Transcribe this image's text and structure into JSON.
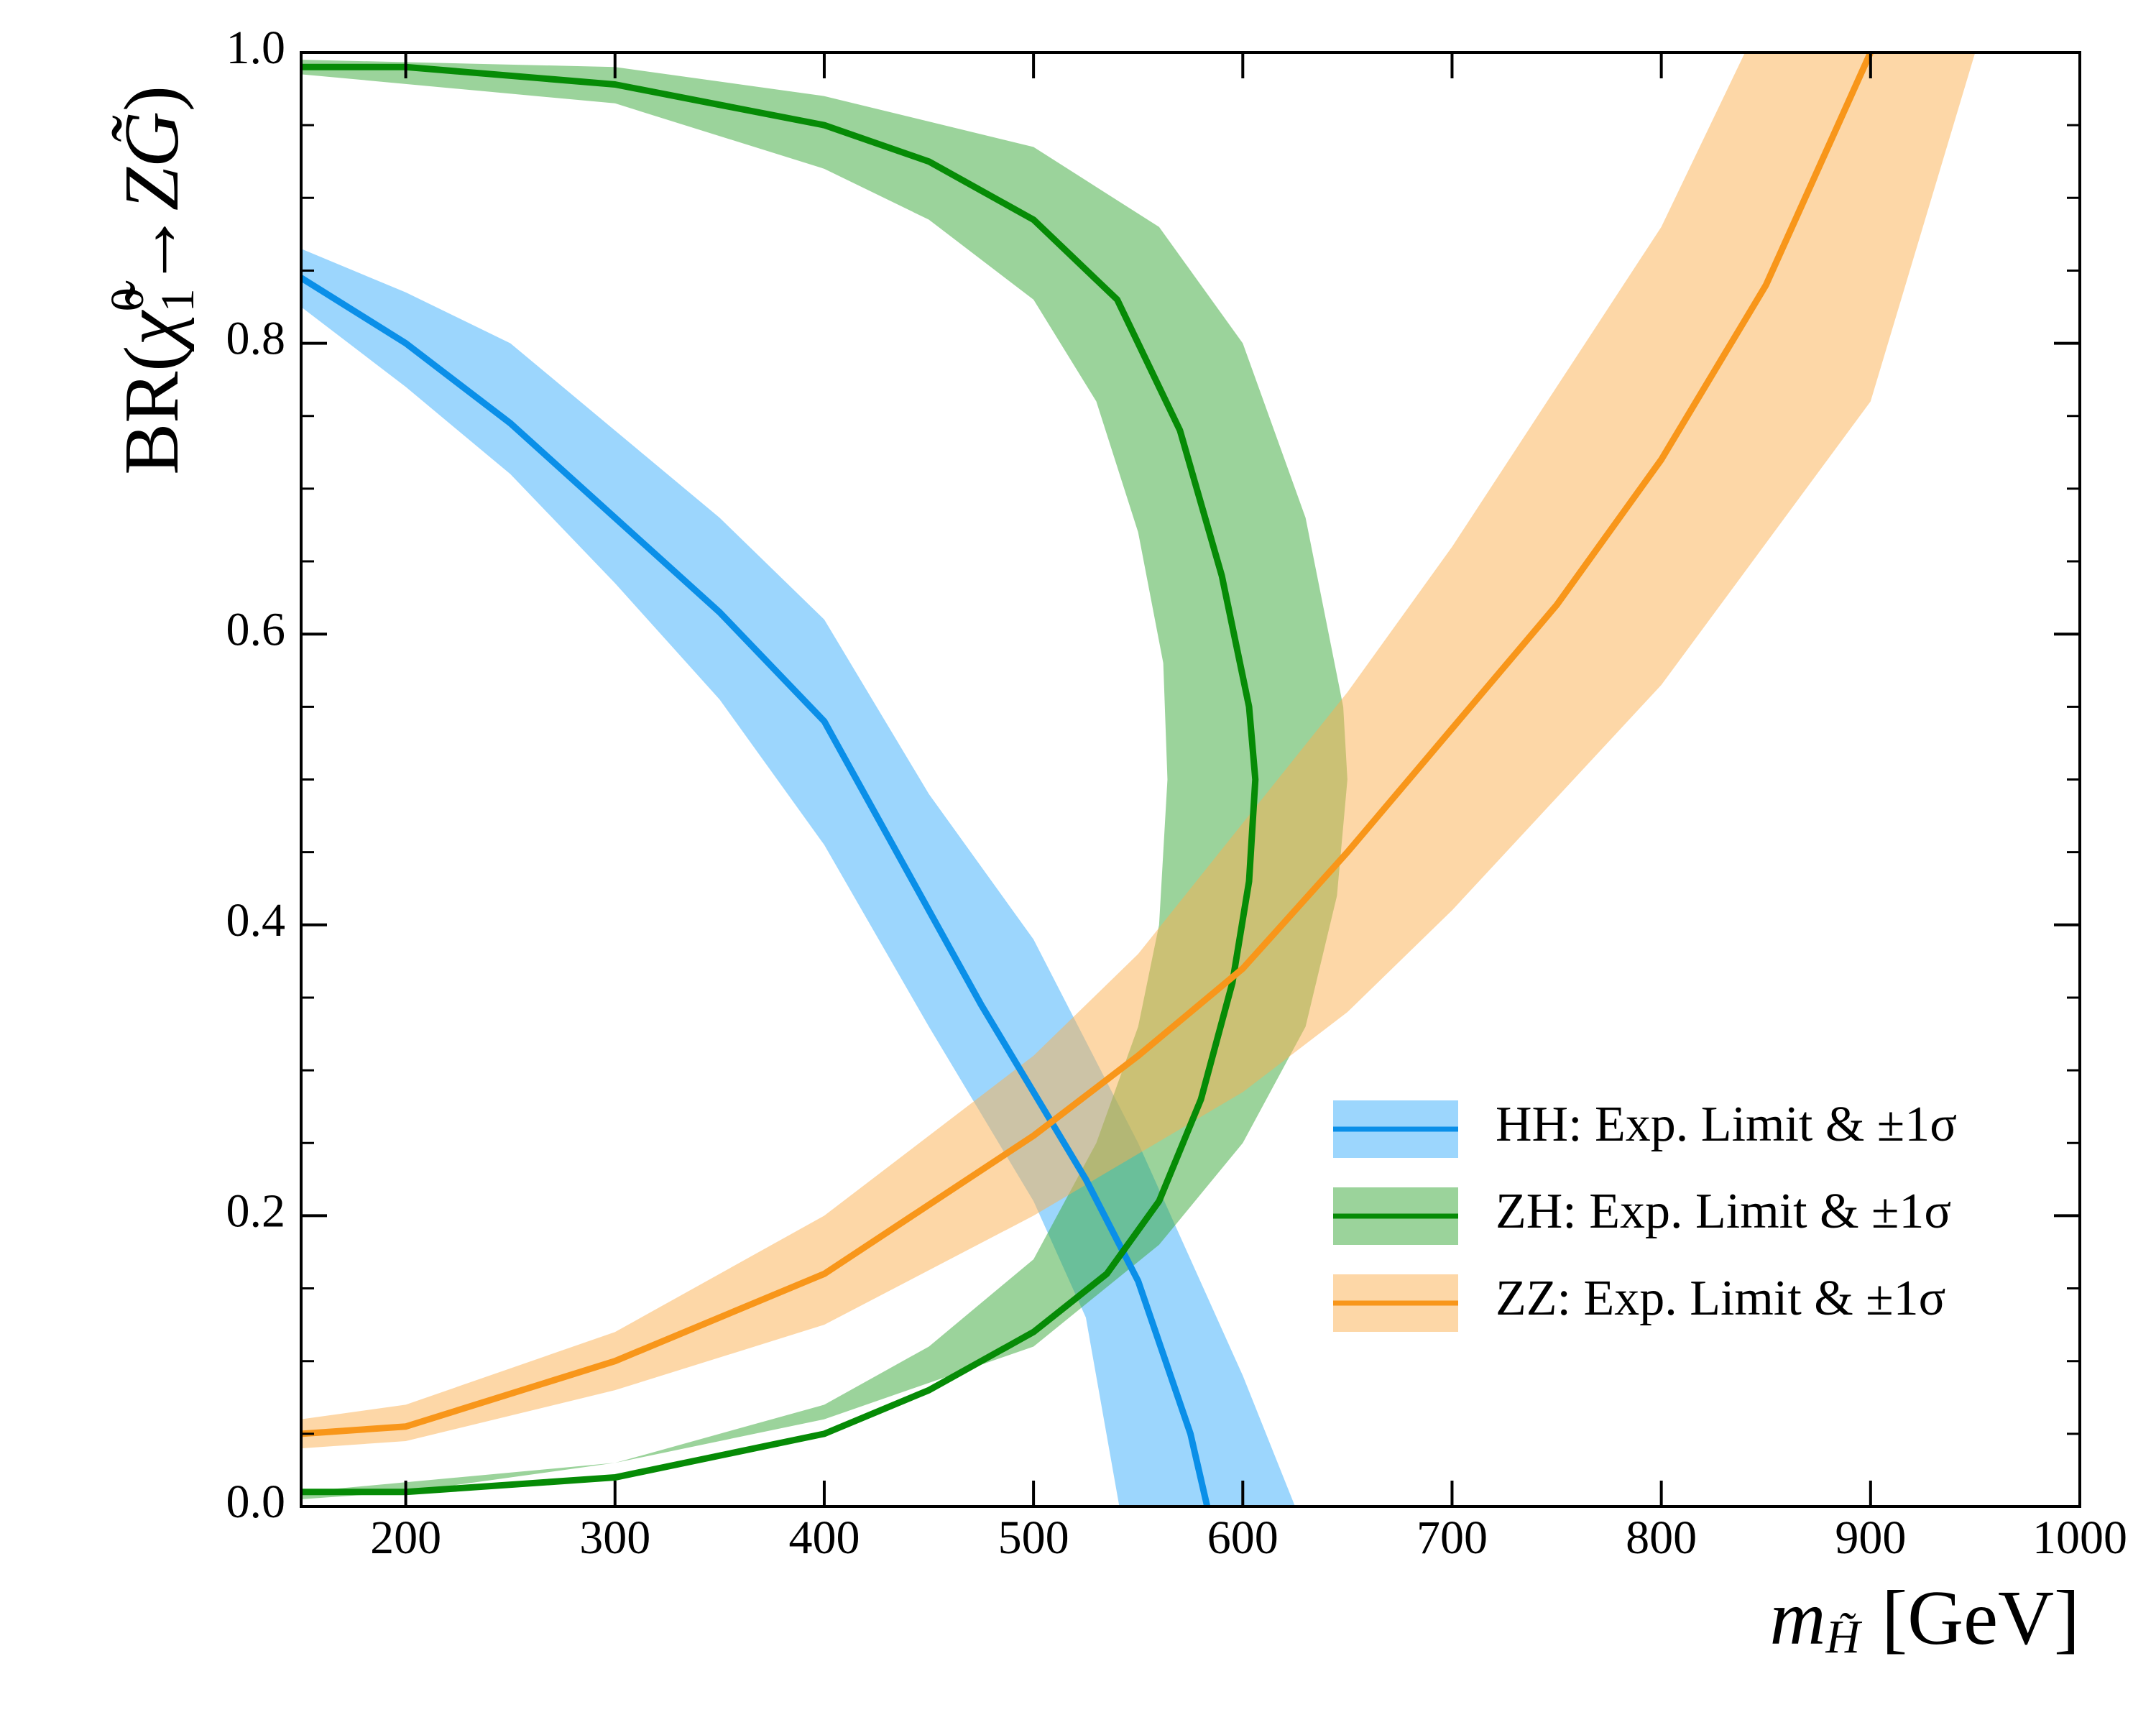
{
  "chart_data": {
    "type": "line",
    "xlabel": {
      "symbol": "m",
      "subscript": "H̃",
      "unit": "[GeV]"
    },
    "ylabel": {
      "prefix": "BR(",
      "symbol": "χ̃",
      "sup": "0",
      "sub": "1",
      "arrow": "→",
      "product": "ZG̃",
      "suffix": ")"
    },
    "xlim": [
      150,
      1000
    ],
    "ylim": [
      0,
      1
    ],
    "xticks": [
      200,
      300,
      400,
      500,
      600,
      700,
      800,
      900,
      1000
    ],
    "yticks": [
      {
        "value": 0,
        "label": "0.0"
      },
      0.2,
      0.4,
      0.6,
      0.8,
      {
        "value": 1,
        "label": "1.0"
      }
    ],
    "yticks_minor": [
      0.05,
      0.1,
      0.15,
      0.25,
      0.3,
      0.35,
      0.45,
      0.5,
      0.55,
      0.65,
      0.7,
      0.75,
      0.85,
      0.9,
      0.95
    ],
    "legend": "lower right",
    "series": [
      {
        "name": "HH: Exp. Limit & ±1σ",
        "color": "#0a8fe8",
        "band_color": "#3aaefc",
        "x": [
          150,
          200,
          250,
          300,
          350,
          400,
          425,
          450,
          475,
          500,
          525,
          550,
          575,
          583
        ],
        "values": [
          0.845,
          0.8,
          0.745,
          0.68,
          0.615,
          0.54,
          0.475,
          0.41,
          0.345,
          0.285,
          0.225,
          0.155,
          0.05,
          0.0
        ],
        "band_upper": {
          "x": [
            150,
            200,
            250,
            300,
            350,
            400,
            450,
            500,
            550,
            600,
            625
          ],
          "y": [
            0.865,
            0.835,
            0.8,
            0.74,
            0.68,
            0.61,
            0.49,
            0.39,
            0.25,
            0.09,
            0.0
          ]
        },
        "band_lower": {
          "x": [
            150,
            200,
            250,
            300,
            350,
            400,
            450,
            500,
            525,
            541
          ],
          "y": [
            0.825,
            0.77,
            0.71,
            0.635,
            0.555,
            0.455,
            0.33,
            0.21,
            0.13,
            0.0
          ]
        }
      },
      {
        "name": "ZH: Exp. Limit & ±1σ",
        "color": "#068b06",
        "band_color": "#38a838",
        "x": [
          150,
          200,
          300,
          400,
          450,
          500,
          540,
          570,
          590,
          603,
          606,
          603,
          595,
          580,
          560,
          535,
          500,
          450,
          400,
          300,
          200,
          150
        ],
        "values": [
          0.99,
          0.99,
          0.978,
          0.95,
          0.925,
          0.885,
          0.83,
          0.74,
          0.64,
          0.55,
          0.5,
          0.43,
          0.36,
          0.28,
          0.21,
          0.16,
          0.12,
          0.08,
          0.05,
          0.02,
          0.01,
          0.01
        ],
        "band_upper": {
          "x": [
            150,
            300,
            400,
            500,
            560,
            600,
            630,
            648,
            650,
            645,
            630,
            600,
            560,
            500,
            400,
            300,
            150
          ],
          "y": [
            0.995,
            0.99,
            0.97,
            0.935,
            0.88,
            0.8,
            0.68,
            0.55,
            0.5,
            0.42,
            0.33,
            0.25,
            0.18,
            0.11,
            0.06,
            0.03,
            0.01
          ]
        },
        "band_lower": {
          "x": [
            150,
            300,
            400,
            450,
            500,
            530,
            550,
            562,
            564,
            560,
            550,
            530,
            500,
            450,
            400,
            300,
            200,
            150
          ],
          "y": [
            0.985,
            0.965,
            0.92,
            0.885,
            0.83,
            0.76,
            0.67,
            0.58,
            0.5,
            0.4,
            0.33,
            0.25,
            0.17,
            0.11,
            0.07,
            0.03,
            0.01,
            0.005
          ]
        }
      },
      {
        "name": "ZZ: Exp. Limit & ±1σ",
        "color": "#f8961a",
        "band_color": "#fcb050",
        "x": [
          150,
          200,
          300,
          400,
          500,
          550,
          600,
          650,
          700,
          750,
          800,
          850,
          900
        ],
        "values": [
          0.05,
          0.055,
          0.1,
          0.16,
          0.255,
          0.31,
          0.37,
          0.45,
          0.535,
          0.62,
          0.72,
          0.84,
          1.0
        ],
        "band_upper": {
          "x": [
            150,
            200,
            300,
            400,
            500,
            550,
            600,
            650,
            700,
            750,
            800,
            840
          ],
          "y": [
            0.06,
            0.07,
            0.12,
            0.2,
            0.31,
            0.38,
            0.47,
            0.56,
            0.66,
            0.77,
            0.88,
            1.0
          ]
        },
        "band_lower": {
          "x": [
            150,
            200,
            300,
            400,
            500,
            600,
            650,
            700,
            800,
            900,
            950
          ],
          "y": [
            0.04,
            0.045,
            0.08,
            0.125,
            0.2,
            0.285,
            0.34,
            0.41,
            0.565,
            0.76,
            1.0
          ]
        }
      }
    ]
  }
}
